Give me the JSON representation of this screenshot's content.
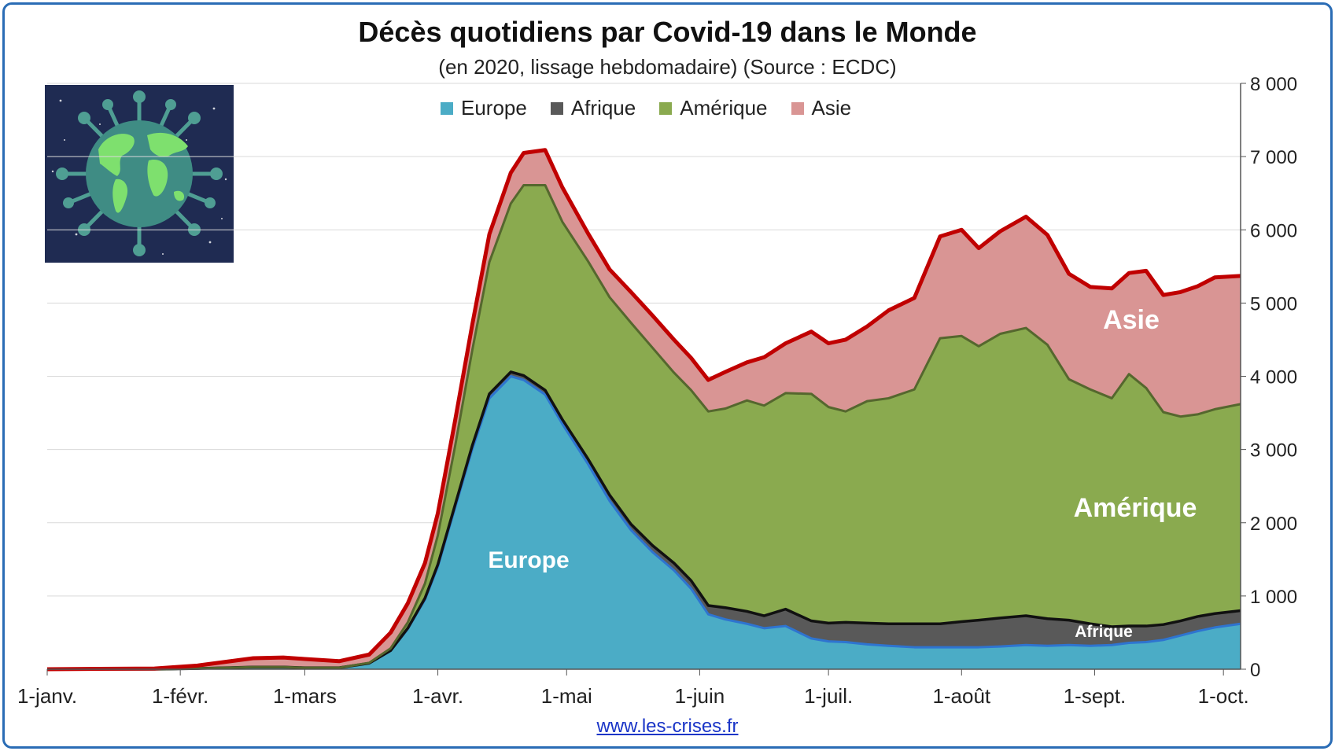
{
  "title": "Décès quotidiens par Covid-19 dans le Monde",
  "subtitle": "(en 2020, lissage hebdomadaire) (Source : ECDC)",
  "source": "www.les-crises.fr",
  "legend": [
    {
      "name": "Europe",
      "color": "#4bacc6"
    },
    {
      "name": "Afrique",
      "color": "#595959"
    },
    {
      "name": "Amérique",
      "color": "#8aaa4f"
    },
    {
      "name": "Asie",
      "color": "#d99594"
    }
  ],
  "icon": "virus-globe-icon",
  "chart_data": {
    "type": "area",
    "stacked": true,
    "title": "Décès quotidiens par Covid-19 dans le Monde",
    "subtitle": "(en 2020, lissage hebdomadaire) (Source : ECDC)",
    "x_ticks": [
      "1-janv.",
      "1-févr.",
      "1-mars",
      "1-avr.",
      "1-mai",
      "1-juin",
      "1-juil.",
      "1-août",
      "1-sept.",
      "1-oct."
    ],
    "x_tick_days": [
      0,
      31,
      60,
      91,
      121,
      152,
      182,
      213,
      244,
      274
    ],
    "y_ticks": [
      "0",
      "1 000",
      "2 000",
      "3 000",
      "4 000",
      "5 000",
      "6 000",
      "7 000",
      "8 000"
    ],
    "ylim": [
      0,
      8000
    ],
    "xlim_days": [
      0,
      278
    ],
    "y_axis_side": "right",
    "grid": true,
    "legend_position": "top",
    "x_days": [
      0,
      25,
      35,
      48,
      55,
      60,
      68,
      75,
      80,
      84,
      88,
      91,
      95,
      99,
      103,
      108,
      111,
      116,
      120,
      126,
      131,
      136,
      141,
      146,
      150,
      154,
      158,
      163,
      167,
      172,
      178,
      182,
      186,
      191,
      196,
      202,
      208,
      213,
      217,
      222,
      228,
      233,
      238,
      243,
      248,
      252,
      256,
      260,
      264,
      268,
      272,
      278
    ],
    "series": [
      {
        "name": "Europe",
        "color": "#4bacc6",
        "line": "#2e74d0",
        "values": [
          0,
          0,
          10,
          30,
          30,
          20,
          20,
          80,
          250,
          550,
          950,
          1400,
          2200,
          3000,
          3700,
          4000,
          3950,
          3750,
          3350,
          2800,
          2300,
          1900,
          1600,
          1350,
          1100,
          750,
          680,
          620,
          560,
          590,
          420,
          380,
          370,
          340,
          320,
          300,
          300,
          300,
          300,
          310,
          330,
          320,
          330,
          320,
          330,
          360,
          370,
          400,
          460,
          520,
          570,
          620
        ]
      },
      {
        "name": "Afrique",
        "color": "#595959",
        "line": "#111111",
        "values": [
          0,
          0,
          0,
          0,
          0,
          0,
          0,
          2,
          5,
          10,
          20,
          30,
          40,
          50,
          60,
          60,
          60,
          60,
          60,
          70,
          80,
          80,
          90,
          100,
          110,
          120,
          160,
          170,
          170,
          230,
          240,
          250,
          270,
          290,
          300,
          320,
          320,
          350,
          370,
          390,
          400,
          370,
          340,
          300,
          250,
          230,
          220,
          210,
          200,
          200,
          190,
          180
        ]
      },
      {
        "name": "Amérique",
        "color": "#8aaa4f",
        "line": "#55672e",
        "values": [
          0,
          0,
          0,
          0,
          0,
          0,
          0,
          5,
          30,
          80,
          200,
          400,
          800,
          1300,
          1800,
          2300,
          2600,
          2800,
          2700,
          2700,
          2700,
          2750,
          2700,
          2600,
          2600,
          2650,
          2720,
          2880,
          2870,
          2950,
          3100,
          2950,
          2880,
          3030,
          3080,
          3200,
          3900,
          3900,
          3740,
          3880,
          3930,
          3740,
          3290,
          3200,
          3120,
          3440,
          3250,
          2900,
          2790,
          2760,
          2790,
          2820
        ]
      },
      {
        "name": "Asie",
        "color": "#d99594",
        "line": "#c00000",
        "values": [
          0,
          10,
          40,
          120,
          130,
          120,
          90,
          113,
          215,
          260,
          280,
          300,
          350,
          350,
          380,
          420,
          440,
          480,
          470,
          380,
          380,
          420,
          440,
          450,
          440,
          430,
          500,
          520,
          660,
          680,
          850,
          870,
          980,
          1020,
          1200,
          1250,
          1390,
          1450,
          1340,
          1400,
          1520,
          1500,
          1440,
          1400,
          1500,
          1380,
          1600,
          1600,
          1700,
          1750,
          1800,
          1750
        ]
      }
    ]
  }
}
